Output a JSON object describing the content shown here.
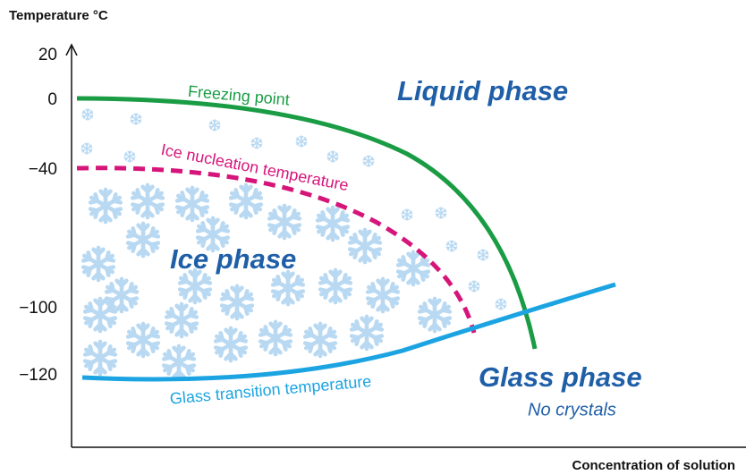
{
  "axis": {
    "y_label": "Temperature °C",
    "x_label": "Concentration of solution",
    "y_ticks": [
      "20",
      "0",
      "−40",
      "−100",
      "−120"
    ]
  },
  "curves": {
    "freezing": "Freezing point",
    "nucleation": "Ice nucleation temperature",
    "glass_transition": "Glass transition temperature"
  },
  "regions": {
    "liquid": "Liquid phase",
    "ice": "Ice phase",
    "glass": "Glass phase",
    "glass_note": "No crystals"
  }
}
